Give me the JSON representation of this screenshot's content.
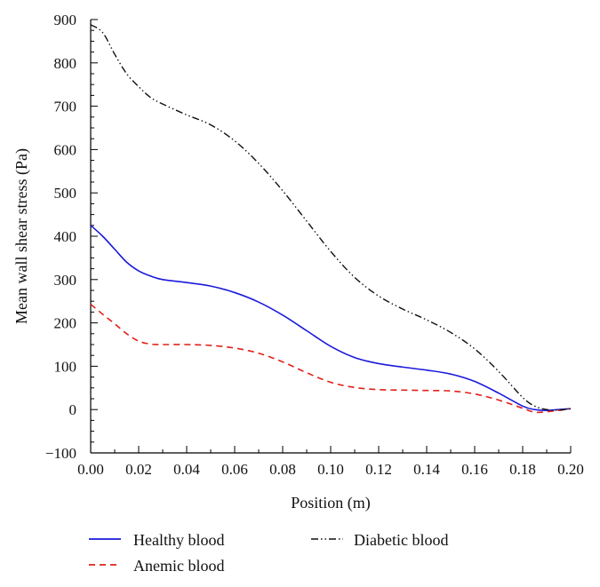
{
  "chart_data": {
    "type": "line",
    "title": "",
    "xlabel": "Position (m)",
    "ylabel": "Mean wall shear stress (Pa)",
    "xlim": [
      0.0,
      0.2
    ],
    "ylim": [
      -100,
      900
    ],
    "x_ticks": [
      "0.00",
      "0.02",
      "0.04",
      "0.06",
      "0.08",
      "0.10",
      "0.12",
      "0.14",
      "0.16",
      "0.18",
      "0.20"
    ],
    "y_ticks": [
      "−100",
      "0",
      "100",
      "200",
      "300",
      "400",
      "500",
      "600",
      "700",
      "800",
      "900"
    ],
    "x_tick_values": [
      0.0,
      0.02,
      0.04,
      0.06,
      0.08,
      0.1,
      0.12,
      0.14,
      0.16,
      0.18,
      0.2
    ],
    "y_tick_values": [
      -100,
      0,
      100,
      200,
      300,
      400,
      500,
      600,
      700,
      800,
      900
    ],
    "grid": false,
    "legend_position": "bottom",
    "x": [
      0.0,
      0.005,
      0.01,
      0.015,
      0.02,
      0.025,
      0.03,
      0.04,
      0.05,
      0.06,
      0.07,
      0.08,
      0.09,
      0.1,
      0.11,
      0.12,
      0.13,
      0.14,
      0.15,
      0.16,
      0.17,
      0.18,
      0.185,
      0.19,
      0.195,
      0.2
    ],
    "series": [
      {
        "name": "Healthy blood",
        "color": "#1a1adb",
        "dash": "solid",
        "values": [
          425,
          400,
          370,
          340,
          320,
          308,
          300,
          293,
          285,
          270,
          248,
          218,
          182,
          146,
          120,
          106,
          98,
          91,
          82,
          65,
          38,
          8,
          0,
          -2,
          0,
          2
        ]
      },
      {
        "name": "Anemic blood",
        "color": "#e0201a",
        "dash": "dashed",
        "values": [
          243,
          220,
          198,
          175,
          158,
          151,
          150,
          150,
          148,
          142,
          130,
          110,
          85,
          63,
          51,
          46,
          45,
          44,
          43,
          36,
          22,
          3,
          -6,
          -5,
          -2,
          2
        ]
      },
      {
        "name": "Diabetic blood",
        "color": "#111111",
        "dash": "dash-dot-dot",
        "values": [
          888,
          870,
          820,
          775,
          745,
          720,
          705,
          680,
          657,
          620,
          568,
          505,
          435,
          365,
          305,
          262,
          232,
          207,
          178,
          140,
          88,
          28,
          8,
          0,
          -1,
          2
        ]
      }
    ]
  }
}
